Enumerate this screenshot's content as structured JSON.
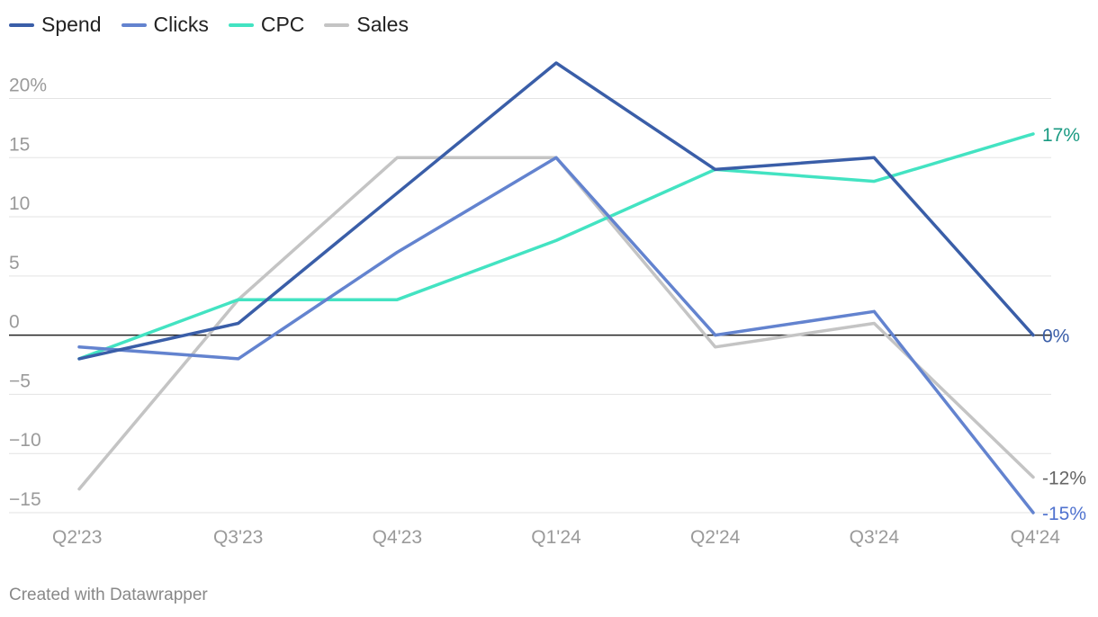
{
  "legend": {
    "items": [
      {
        "label": "Spend",
        "color": "#3a5ea8"
      },
      {
        "label": "Clicks",
        "color": "#6383cf"
      },
      {
        "label": "CPC",
        "color": "#43e3c2"
      },
      {
        "label": "Sales",
        "color": "#c4c4c4"
      }
    ]
  },
  "footer": {
    "credit": "Created with Datawrapper"
  },
  "chart_data": {
    "type": "line",
    "categories": [
      "Q2'23",
      "Q3'23",
      "Q4'23",
      "Q1'24",
      "Q2'24",
      "Q3'24",
      "Q4'24"
    ],
    "series": [
      {
        "name": "Sales",
        "values": [
          -13,
          3,
          15,
          15,
          -1,
          1,
          -12
        ],
        "color": "#c4c4c4",
        "end_label": "-12%",
        "end_label_color": "#666666"
      },
      {
        "name": "CPC",
        "values": [
          -2,
          3,
          3,
          8,
          14,
          13,
          17
        ],
        "color": "#43e3c2",
        "end_label": "17%",
        "end_label_color": "#1a9a82"
      },
      {
        "name": "Clicks",
        "values": [
          -1,
          -2,
          7,
          15,
          0,
          2,
          -15
        ],
        "color": "#6383cf",
        "end_label": "-15%",
        "end_label_color": "#5073cf"
      },
      {
        "name": "Spend",
        "values": [
          -2,
          1,
          12,
          23,
          14,
          15,
          0
        ],
        "color": "#3a5ea8",
        "end_label": "0%",
        "end_label_color": "#3a5ea8"
      }
    ],
    "y_ticks": [
      {
        "value": 20,
        "label": "20%"
      },
      {
        "value": 15,
        "label": "15"
      },
      {
        "value": 10,
        "label": "10"
      },
      {
        "value": 5,
        "label": "5"
      },
      {
        "value": 0,
        "label": "0"
      },
      {
        "value": -5,
        "label": "−5"
      },
      {
        "value": -10,
        "label": "−10"
      },
      {
        "value": -15,
        "label": "−15"
      }
    ],
    "ylim": [
      -15,
      23
    ],
    "grid": true,
    "legend_position": "top-left"
  }
}
